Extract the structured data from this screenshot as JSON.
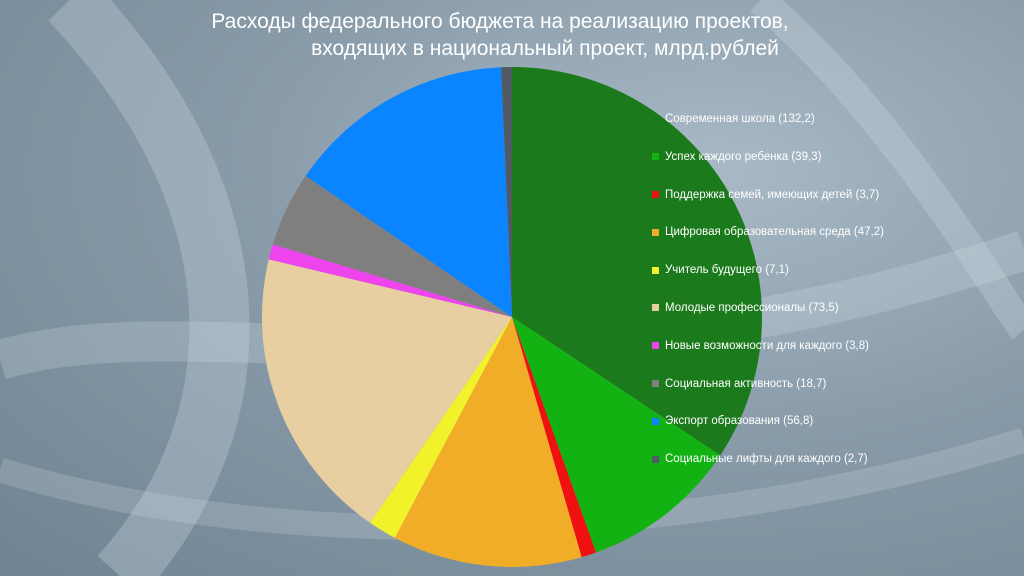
{
  "chart_data": {
    "type": "pie",
    "title": [
      "Расходы федерального бюджета на реализацию проектов,",
      "входящих в национальный проект, млрд.рублей"
    ],
    "slices": [
      {
        "label": "Современная школа (132,2)",
        "value": 132.2,
        "color": "#1b7a1b"
      },
      {
        "label": "Успех каждого ребенка (39,3)",
        "value": 39.3,
        "color": "#13b213"
      },
      {
        "label": "Поддержка семей, имеющих детей (3,7)",
        "value": 3.7,
        "color": "#f01010"
      },
      {
        "label": "Цифровая образовательная среда (47,2)",
        "value": 47.2,
        "color": "#f2ad28"
      },
      {
        "label": "Учитель будущего (7,1)",
        "value": 7.1,
        "color": "#f2f22a"
      },
      {
        "label": "Молодые профессионалы (73,5)",
        "value": 73.5,
        "color": "#e8cfa2"
      },
      {
        "label": "Новые возможности для каждого (3,8)",
        "value": 3.8,
        "color": "#ee44ee"
      },
      {
        "label": "Социальная активность (18,7)",
        "value": 18.7,
        "color": "#7f7f7f"
      },
      {
        "label": "Экспорт образования (56,8)",
        "value": 56.8,
        "color": "#0a84ff"
      },
      {
        "label": "Социальные лифты для каждого (2,7)",
        "value": 2.7,
        "color": "#505a63"
      }
    ],
    "legend_position": "right"
  }
}
